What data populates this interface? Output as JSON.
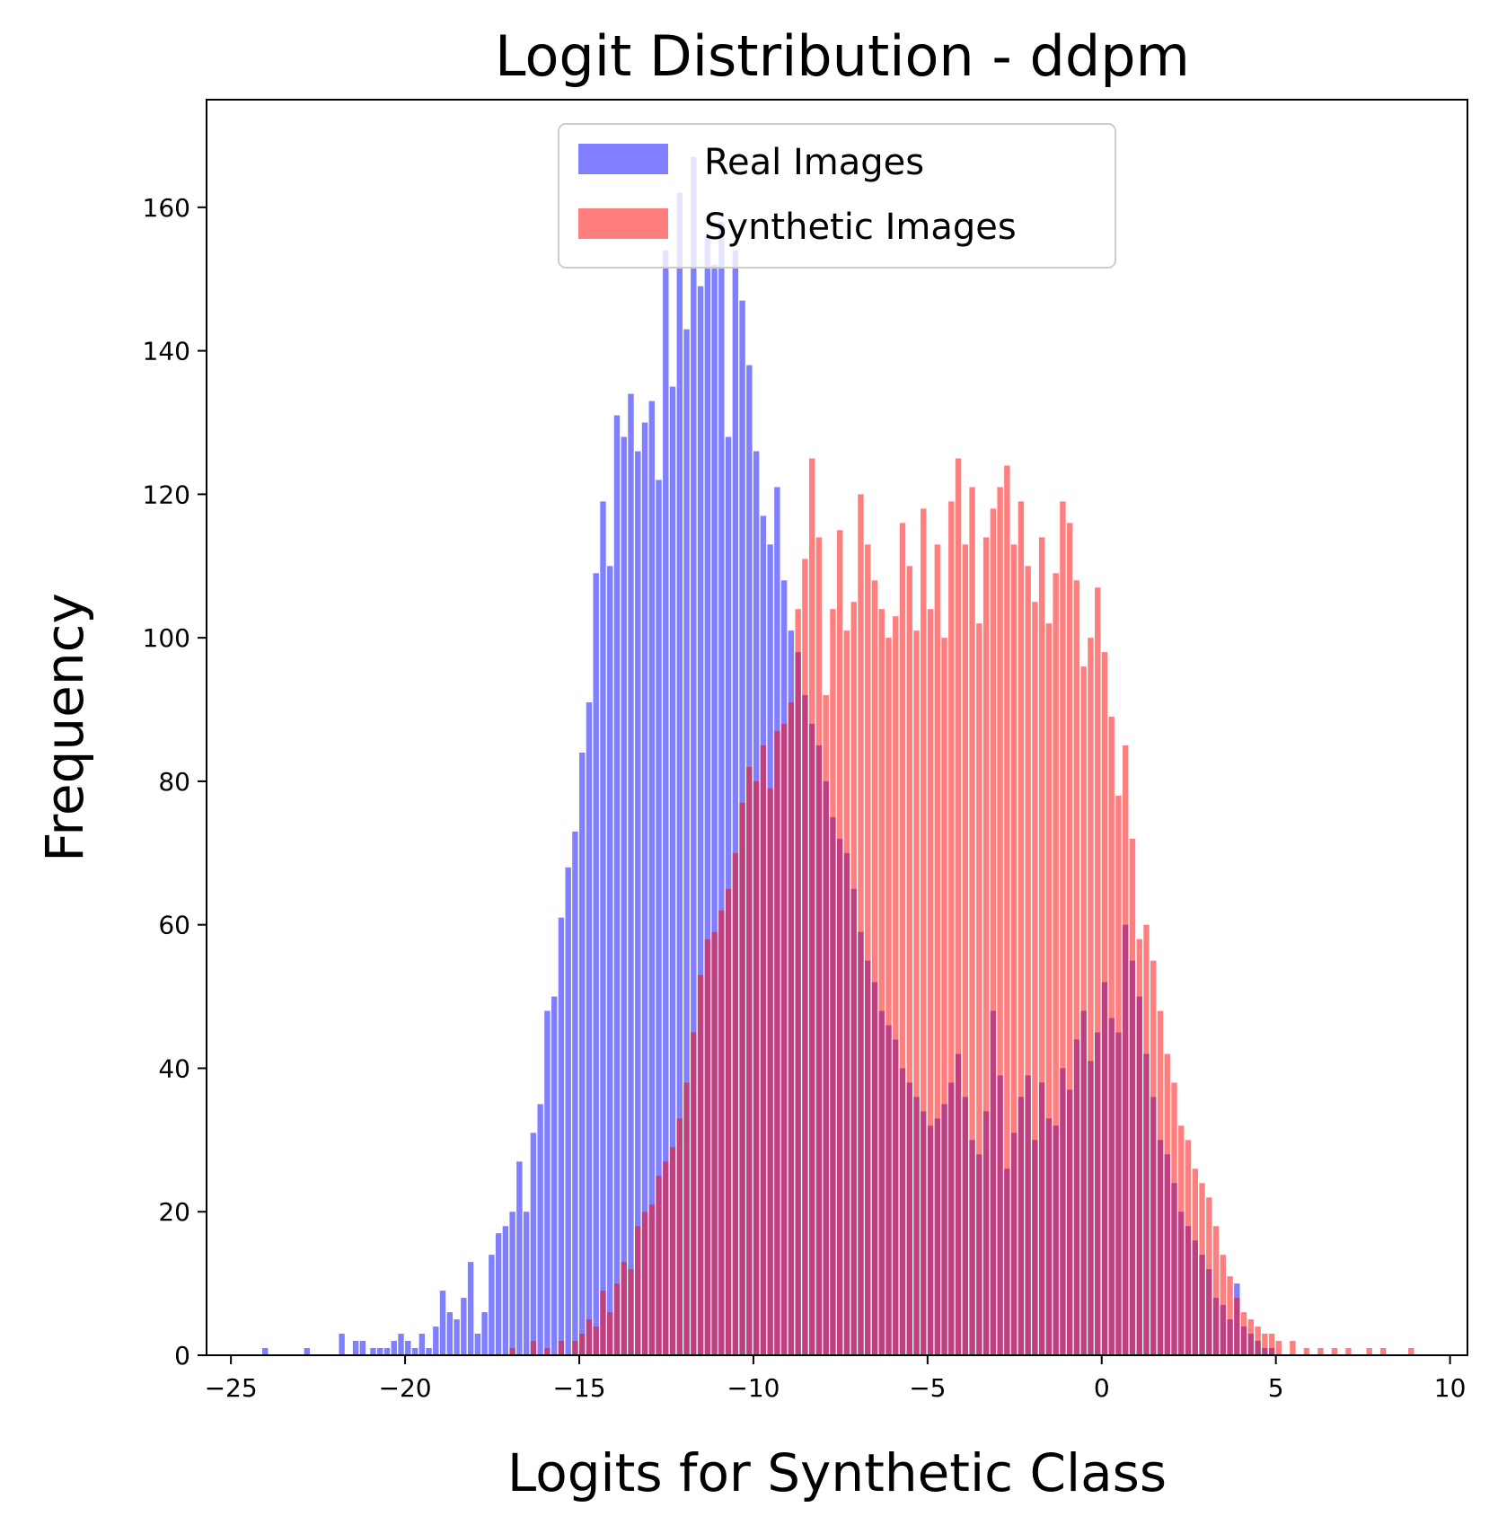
{
  "chart_data": {
    "type": "histogram",
    "title": "Logit Distribution - ddpm",
    "xlabel": "Logits for Synthetic Class",
    "ylabel": "Frequency",
    "xlim": [
      -25.7,
      10.5
    ],
    "ylim": [
      0,
      175
    ],
    "x_ticks": [
      -25,
      -20,
      -15,
      -10,
      -5,
      0,
      5,
      10
    ],
    "x_tick_labels": [
      "−25",
      "−20",
      "−15",
      "−10",
      "−5",
      "0",
      "5",
      "10"
    ],
    "y_ticks": [
      0,
      20,
      40,
      60,
      80,
      100,
      120,
      140,
      160
    ],
    "y_tick_labels": [
      "0",
      "20",
      "40",
      "60",
      "80",
      "100",
      "120",
      "140",
      "160"
    ],
    "bin_width": 0.165,
    "grid": false,
    "legend_position": "upper center",
    "series": [
      {
        "name": "Real Images",
        "color": "#0000ff",
        "alpha": 0.5,
        "bins": [
          [
            -24.1,
            1
          ],
          [
            -22.9,
            1
          ],
          [
            -21.9,
            3
          ],
          [
            -21.5,
            2
          ],
          [
            -21.3,
            2
          ],
          [
            -21.0,
            1
          ],
          [
            -20.8,
            1
          ],
          [
            -20.6,
            1
          ],
          [
            -20.4,
            2
          ],
          [
            -20.2,
            3
          ],
          [
            -20.0,
            2
          ],
          [
            -19.8,
            1
          ],
          [
            -19.6,
            3
          ],
          [
            -19.4,
            1
          ],
          [
            -19.2,
            4
          ],
          [
            -19.0,
            9
          ],
          [
            -18.8,
            6
          ],
          [
            -18.6,
            5
          ],
          [
            -18.4,
            8
          ],
          [
            -18.2,
            13
          ],
          [
            -18.0,
            3
          ],
          [
            -17.8,
            6
          ],
          [
            -17.6,
            14
          ],
          [
            -17.4,
            17
          ],
          [
            -17.2,
            18
          ],
          [
            -17.0,
            20
          ],
          [
            -16.8,
            27
          ],
          [
            -16.6,
            20
          ],
          [
            -16.4,
            31
          ],
          [
            -16.2,
            35
          ],
          [
            -16.0,
            48
          ],
          [
            -15.8,
            50
          ],
          [
            -15.6,
            61
          ],
          [
            -15.4,
            68
          ],
          [
            -15.2,
            73
          ],
          [
            -15.0,
            84
          ],
          [
            -14.8,
            91
          ],
          [
            -14.6,
            109
          ],
          [
            -14.4,
            119
          ],
          [
            -14.2,
            110
          ],
          [
            -14.0,
            131
          ],
          [
            -13.8,
            128
          ],
          [
            -13.6,
            134
          ],
          [
            -13.4,
            126
          ],
          [
            -13.2,
            130
          ],
          [
            -13.0,
            133
          ],
          [
            -12.8,
            122
          ],
          [
            -12.6,
            154
          ],
          [
            -12.4,
            135
          ],
          [
            -12.2,
            162
          ],
          [
            -12.0,
            143
          ],
          [
            -11.8,
            167
          ],
          [
            -11.6,
            149
          ],
          [
            -11.4,
            156
          ],
          [
            -11.2,
            152
          ],
          [
            -11.0,
            158
          ],
          [
            -10.8,
            128
          ],
          [
            -10.6,
            154
          ],
          [
            -10.4,
            147
          ],
          [
            -10.2,
            138
          ],
          [
            -10.0,
            126
          ],
          [
            -9.8,
            117
          ],
          [
            -9.6,
            113
          ],
          [
            -9.4,
            121
          ],
          [
            -9.2,
            108
          ],
          [
            -9.0,
            101
          ],
          [
            -8.8,
            98
          ],
          [
            -8.6,
            92
          ],
          [
            -8.4,
            88
          ],
          [
            -8.2,
            85
          ],
          [
            -8.0,
            80
          ],
          [
            -7.8,
            75
          ],
          [
            -7.6,
            72
          ],
          [
            -7.4,
            70
          ],
          [
            -7.2,
            65
          ],
          [
            -7.0,
            59
          ],
          [
            -6.8,
            55
          ],
          [
            -6.6,
            52
          ],
          [
            -6.4,
            48
          ],
          [
            -6.2,
            46
          ],
          [
            -6.0,
            44
          ],
          [
            -5.8,
            40
          ],
          [
            -5.6,
            38
          ],
          [
            -5.4,
            36
          ],
          [
            -5.2,
            34
          ],
          [
            -5.0,
            32
          ],
          [
            -4.8,
            33
          ],
          [
            -4.6,
            35
          ],
          [
            -4.4,
            38
          ],
          [
            -4.2,
            42
          ],
          [
            -4.0,
            36
          ],
          [
            -3.8,
            30
          ],
          [
            -3.6,
            28
          ],
          [
            -3.4,
            34
          ],
          [
            -3.2,
            48
          ],
          [
            -3.0,
            39
          ],
          [
            -2.8,
            26
          ],
          [
            -2.6,
            31
          ],
          [
            -2.4,
            36
          ],
          [
            -2.2,
            39
          ],
          [
            -2.0,
            30
          ],
          [
            -1.8,
            38
          ],
          [
            -1.6,
            33
          ],
          [
            -1.4,
            32
          ],
          [
            -1.2,
            40
          ],
          [
            -1.0,
            37
          ],
          [
            -0.8,
            44
          ],
          [
            -0.6,
            48
          ],
          [
            -0.4,
            41
          ],
          [
            -0.2,
            45
          ],
          [
            0.0,
            52
          ],
          [
            0.2,
            47
          ],
          [
            0.4,
            45
          ],
          [
            0.6,
            60
          ],
          [
            0.8,
            55
          ],
          [
            1.0,
            50
          ],
          [
            1.2,
            42
          ],
          [
            1.4,
            36
          ],
          [
            1.6,
            30
          ],
          [
            1.8,
            28
          ],
          [
            2.0,
            24
          ],
          [
            2.2,
            20
          ],
          [
            2.4,
            18
          ],
          [
            2.6,
            16
          ],
          [
            2.8,
            14
          ],
          [
            3.0,
            12
          ],
          [
            3.2,
            8
          ],
          [
            3.4,
            7
          ],
          [
            3.6,
            5
          ],
          [
            3.8,
            10
          ],
          [
            4.0,
            4
          ],
          [
            4.2,
            3
          ],
          [
            4.4,
            2
          ],
          [
            4.6,
            1
          ],
          [
            4.8,
            1
          ]
        ]
      },
      {
        "name": "Synthetic Images",
        "color": "#ff0000",
        "alpha": 0.5,
        "bins": [
          [
            -17.0,
            1
          ],
          [
            -16.4,
            2
          ],
          [
            -16.0,
            1
          ],
          [
            -15.6,
            2
          ],
          [
            -15.2,
            2
          ],
          [
            -15.0,
            3
          ],
          [
            -14.8,
            5
          ],
          [
            -14.6,
            4
          ],
          [
            -14.4,
            9
          ],
          [
            -14.2,
            6
          ],
          [
            -14.0,
            10
          ],
          [
            -13.8,
            13
          ],
          [
            -13.6,
            12
          ],
          [
            -13.4,
            18
          ],
          [
            -13.2,
            20
          ],
          [
            -13.0,
            21
          ],
          [
            -12.8,
            25
          ],
          [
            -12.6,
            27
          ],
          [
            -12.4,
            29
          ],
          [
            -12.2,
            33
          ],
          [
            -12.0,
            38
          ],
          [
            -11.8,
            45
          ],
          [
            -11.6,
            53
          ],
          [
            -11.4,
            58
          ],
          [
            -11.2,
            59
          ],
          [
            -11.0,
            62
          ],
          [
            -10.8,
            65
          ],
          [
            -10.6,
            70
          ],
          [
            -10.4,
            77
          ],
          [
            -10.2,
            82
          ],
          [
            -10.0,
            80
          ],
          [
            -9.8,
            85
          ],
          [
            -9.6,
            79
          ],
          [
            -9.4,
            87
          ],
          [
            -9.2,
            88
          ],
          [
            -9.0,
            91
          ],
          [
            -8.8,
            104
          ],
          [
            -8.6,
            111
          ],
          [
            -8.4,
            125
          ],
          [
            -8.2,
            114
          ],
          [
            -8.0,
            92
          ],
          [
            -7.8,
            104
          ],
          [
            -7.6,
            115
          ],
          [
            -7.4,
            101
          ],
          [
            -7.2,
            105
          ],
          [
            -7.0,
            120
          ],
          [
            -6.8,
            113
          ],
          [
            -6.6,
            108
          ],
          [
            -6.4,
            104
          ],
          [
            -6.2,
            100
          ],
          [
            -6.0,
            103
          ],
          [
            -5.8,
            116
          ],
          [
            -5.6,
            110
          ],
          [
            -5.4,
            101
          ],
          [
            -5.2,
            118
          ],
          [
            -5.0,
            104
          ],
          [
            -4.8,
            113
          ],
          [
            -4.6,
            100
          ],
          [
            -4.4,
            119
          ],
          [
            -4.2,
            125
          ],
          [
            -4.0,
            113
          ],
          [
            -3.8,
            121
          ],
          [
            -3.6,
            102
          ],
          [
            -3.4,
            114
          ],
          [
            -3.2,
            118
          ],
          [
            -3.0,
            121
          ],
          [
            -2.8,
            124
          ],
          [
            -2.6,
            113
          ],
          [
            -2.4,
            119
          ],
          [
            -2.2,
            110
          ],
          [
            -2.0,
            105
          ],
          [
            -1.8,
            114
          ],
          [
            -1.6,
            102
          ],
          [
            -1.4,
            109
          ],
          [
            -1.2,
            119
          ],
          [
            -1.0,
            116
          ],
          [
            -0.8,
            108
          ],
          [
            -0.6,
            96
          ],
          [
            -0.4,
            100
          ],
          [
            -0.2,
            107
          ],
          [
            0.0,
            98
          ],
          [
            0.2,
            89
          ],
          [
            0.4,
            78
          ],
          [
            0.6,
            85
          ],
          [
            0.8,
            72
          ],
          [
            1.0,
            58
          ],
          [
            1.2,
            60
          ],
          [
            1.4,
            55
          ],
          [
            1.6,
            48
          ],
          [
            1.8,
            42
          ],
          [
            2.0,
            38
          ],
          [
            2.2,
            32
          ],
          [
            2.4,
            30
          ],
          [
            2.6,
            26
          ],
          [
            2.8,
            24
          ],
          [
            3.0,
            22
          ],
          [
            3.2,
            18
          ],
          [
            3.4,
            14
          ],
          [
            3.6,
            11
          ],
          [
            3.8,
            8
          ],
          [
            4.0,
            6
          ],
          [
            4.2,
            5
          ],
          [
            4.4,
            4
          ],
          [
            4.6,
            3
          ],
          [
            4.8,
            3
          ],
          [
            5.0,
            2
          ],
          [
            5.4,
            2
          ],
          [
            5.8,
            1
          ],
          [
            6.2,
            1
          ],
          [
            6.6,
            1
          ],
          [
            7.0,
            1
          ],
          [
            7.6,
            1
          ],
          [
            8.0,
            1
          ],
          [
            8.8,
            1
          ]
        ]
      }
    ]
  }
}
